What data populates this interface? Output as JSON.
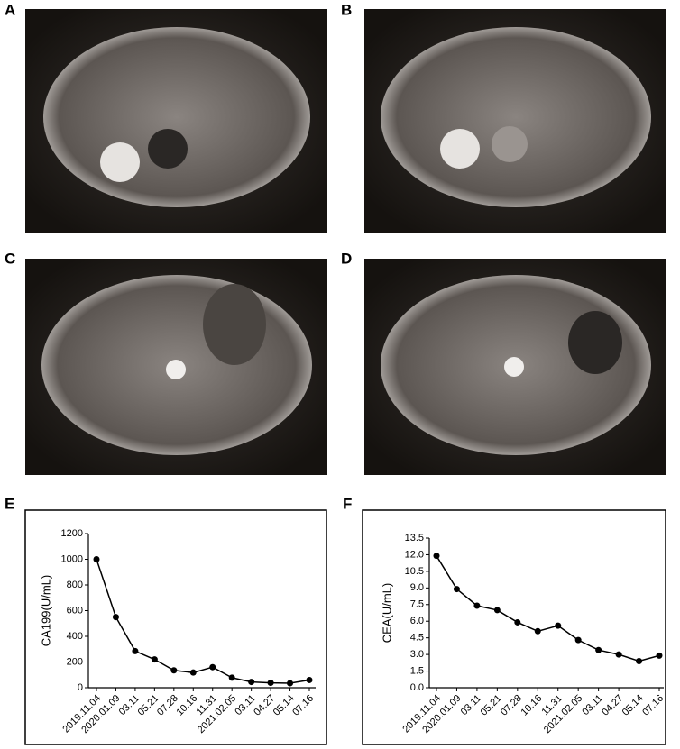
{
  "panel_labels": [
    "A",
    "B",
    "C",
    "D",
    "E",
    "F"
  ],
  "chart_data": [
    {
      "type": "line",
      "y_label": "CA199(U/mL)",
      "categories": [
        "2019.11.04",
        "2020.01.09",
        "03.11",
        "05.21",
        "07.28",
        "10.16",
        "11.31",
        "2021.02.05",
        "03.11",
        "04.27",
        "05.14",
        "07.16"
      ],
      "series": [
        {
          "color": "#000000",
          "values": [
            1000,
            550,
            285,
            220,
            135,
            118,
            160,
            78,
            45,
            38,
            35,
            60
          ]
        }
      ],
      "ylim": [
        0,
        1200
      ],
      "yticks": [
        0,
        200,
        400,
        600,
        800,
        1000,
        1200
      ]
    },
    {
      "type": "line",
      "y_label": "CEA(U/mL)",
      "categories": [
        "2019.11.04",
        "2020.01.09",
        "03.11",
        "05.21",
        "07.28",
        "10.16",
        "11.31",
        "2021.02.05",
        "03.11",
        "04.27",
        "05.14",
        "07.16"
      ],
      "series": [
        {
          "color": "#000000",
          "values": [
            11.9,
            8.9,
            7.4,
            7.0,
            5.9,
            5.1,
            5.6,
            4.3,
            3.4,
            3.0,
            2.4,
            2.9
          ]
        }
      ],
      "ylim": [
        0,
        13.5
      ],
      "yticks": [
        {
          "value": 0,
          "label": "0.0"
        },
        1.5,
        {
          "value": 3,
          "label": "3.0"
        },
        4.5,
        {
          "value": 6,
          "label": "6.0"
        },
        7.5,
        {
          "value": 9,
          "label": "9.0"
        },
        10.5,
        {
          "value": 12,
          "label": "12.0"
        },
        13.5
      ]
    }
  ]
}
